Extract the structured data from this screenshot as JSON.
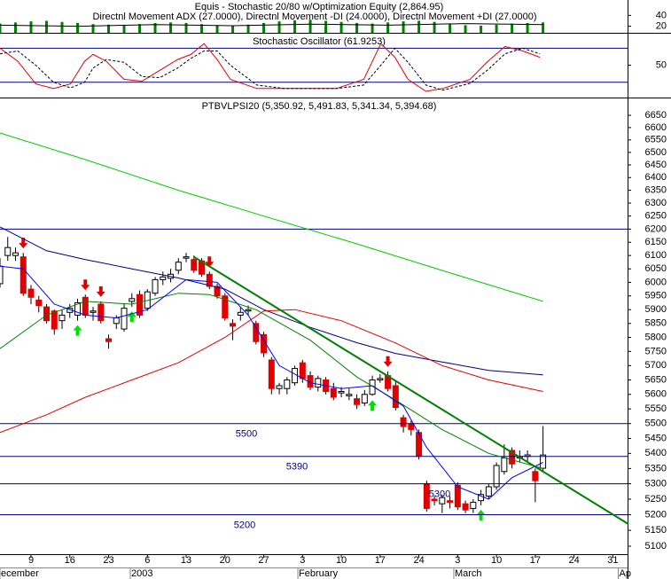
{
  "chart_data": [
    {
      "type": "bar",
      "title": "Equis - Stochastic 20/80  w/Optimization Equity (2,864.95)",
      "subtitle": "Directnl Movement ADX (27.0000), Directnl Movement -DI (24.0000), Directnl Movement +DI (27.0000)",
      "ylim": [
        8,
        65
      ],
      "yticks": [
        40,
        20
      ],
      "color": "#008000",
      "x": [
        0,
        2,
        4,
        6,
        8,
        10,
        12,
        14,
        16,
        18,
        20,
        22,
        24,
        26,
        28,
        30,
        32,
        34,
        36,
        38,
        40,
        42,
        44,
        46,
        48,
        50,
        52,
        54,
        56,
        58,
        60,
        62,
        64,
        66,
        68,
        70
      ],
      "values": [
        25,
        27,
        29,
        30,
        28,
        26,
        24,
        23,
        22,
        24,
        26,
        27,
        26,
        24,
        22,
        21,
        23,
        26,
        29,
        31,
        32,
        30,
        28,
        26,
        25,
        27,
        29,
        30,
        28,
        25,
        22,
        21,
        23,
        25,
        26,
        27
      ],
      "lines": [
        {
          "color": "#000000",
          "x": [
            0,
            10,
            20,
            30,
            40,
            50,
            60,
            70
          ],
          "values": [
            22,
            20,
            23,
            21,
            24,
            22,
            25,
            23
          ]
        }
      ]
    },
    {
      "type": "line",
      "title": "Stochastic Oscillator (61.9253)",
      "ylim": [
        -7,
        104
      ],
      "yticks": [
        50
      ],
      "levels": [
        80,
        20
      ],
      "level_color": "#000080",
      "lines": [
        {
          "color": "#e00000",
          "x": [
            0,
            2.3,
            4.6,
            6.9,
            9.1,
            10.9,
            12,
            13.7,
            16,
            18.3,
            20.6,
            22.9,
            24.6,
            26.3,
            28,
            29.7,
            33.1,
            36.6,
            40,
            43.4,
            46.9,
            49.1,
            50.9,
            52.6,
            54.9,
            57.1,
            60.6,
            62.9,
            65.1,
            67.4,
            69.6
          ],
          "values": [
            80,
            57,
            17,
            9,
            17,
            57,
            69,
            57,
            25,
            22,
            41,
            60,
            69,
            88,
            60,
            25,
            9,
            9,
            9,
            9,
            25,
            88,
            64,
            25,
            4,
            9,
            25,
            57,
            83,
            75,
            64
          ]
        },
        {
          "color": "#000000",
          "dash": true,
          "x": [
            0,
            2.3,
            4.6,
            6.9,
            9.1,
            10.9,
            12,
            13.7,
            16,
            18.3,
            20.6,
            22.9,
            24.6,
            26.3,
            28,
            29.7,
            33.1,
            36.6,
            40,
            43.4,
            46.9,
            49.1,
            50.9,
            52.6,
            54.9,
            57.1,
            60.6,
            62.9,
            65.1,
            67.4,
            69.6
          ],
          "values": [
            70,
            75,
            50,
            20,
            10,
            20,
            45,
            60,
            55,
            30,
            28,
            45,
            62,
            75,
            75,
            50,
            15,
            9,
            9,
            9,
            15,
            50,
            80,
            55,
            15,
            6,
            18,
            42,
            70,
            80,
            70
          ]
        }
      ]
    },
    {
      "type": "candlestick",
      "title": "PTBVLPSI20 (5,350.92, 5,491.83, 5,341.34, 5,394.68)",
      "log_scale": true,
      "ylim": [
        5075,
        6716
      ],
      "yticks": [
        6650,
        6600,
        6550,
        6500,
        6450,
        6400,
        6350,
        6300,
        6250,
        6200,
        6150,
        6100,
        6050,
        6000,
        5950,
        5900,
        5850,
        5800,
        5750,
        5700,
        5650,
        5600,
        5550,
        5500,
        5450,
        5400,
        5350,
        5300,
        5250,
        5200,
        5150,
        5100
      ],
      "xlim": [
        0,
        80.9
      ],
      "xticks": [
        {
          "value": 4,
          "label": "9"
        },
        {
          "value": 9,
          "label": "16"
        },
        {
          "value": 14,
          "label": "23"
        },
        {
          "value": 19,
          "label": "6"
        },
        {
          "value": 24,
          "label": "13"
        },
        {
          "value": 29,
          "label": "20"
        },
        {
          "value": 34,
          "label": "27"
        },
        {
          "value": 39,
          "label": "3"
        },
        {
          "value": 44,
          "label": "10"
        },
        {
          "value": 49,
          "label": "17"
        },
        {
          "value": 54,
          "label": "24"
        },
        {
          "value": 59,
          "label": "3"
        },
        {
          "value": 64,
          "label": "10"
        },
        {
          "value": 69,
          "label": "17"
        },
        {
          "value": 74,
          "label": "24"
        },
        {
          "value": 79,
          "label": "31"
        }
      ],
      "month_labels": [
        {
          "value": 0,
          "label": "ecember"
        },
        {
          "value": 16.8,
          "label": "2003"
        },
        {
          "value": 38.4,
          "label": "February"
        },
        {
          "value": 58.5,
          "label": "March"
        },
        {
          "value": 79.7,
          "label": "Ap"
        }
      ],
      "open": [
        5995,
        6100,
        6100,
        6095,
        5975,
        5935,
        5910,
        5895,
        5860,
        5890,
        5880,
        5945,
        5890,
        5920,
        5795,
        5850,
        5830,
        5930,
        5955,
        5905,
        5960,
        6010,
        6015,
        6045,
        6090,
        6085,
        6080,
        6030,
        5985,
        5950,
        5850,
        5880,
        5895,
        5850,
        5810,
        5720,
        5620,
        5620,
        5640,
        5710,
        5665,
        5625,
        5650,
        5620,
        5605,
        5595,
        5585,
        5570,
        5600,
        5650,
        5665,
        5630,
        5520,
        5500,
        5470,
        5300,
        5250,
        5235,
        5245,
        5295,
        5235,
        5220,
        5245,
        5260,
        5290,
        5340,
        5410,
        5385,
        5390,
        5340,
        5350.92
      ],
      "high": [
        6090,
        6170,
        6130,
        6110,
        5990,
        5950,
        5920,
        5900,
        5900,
        5920,
        5940,
        5955,
        5910,
        5930,
        5810,
        5880,
        5920,
        5960,
        5970,
        5975,
        6020,
        6040,
        6050,
        6090,
        6110,
        6100,
        6090,
        6040,
        5995,
        5960,
        5865,
        5910,
        5915,
        5860,
        5820,
        5730,
        5640,
        5660,
        5700,
        5720,
        5680,
        5665,
        5660,
        5640,
        5625,
        5620,
        5600,
        5615,
        5665,
        5670,
        5680,
        5645,
        5530,
        5510,
        5480,
        5310,
        5260,
        5265,
        5260,
        5305,
        5245,
        5250,
        5280,
        5300,
        5370,
        5430,
        5420,
        5410,
        5410,
        5350,
        5491.83
      ],
      "low": [
        5980,
        6080,
        6080,
        5950,
        5920,
        5890,
        5850,
        5810,
        5830,
        5870,
        5860,
        5870,
        5860,
        5850,
        5760,
        5830,
        5820,
        5910,
        5870,
        5895,
        5950,
        5990,
        6000,
        6030,
        6075,
        6035,
        6020,
        5975,
        5940,
        5860,
        5790,
        5860,
        5880,
        5775,
        5730,
        5600,
        5600,
        5600,
        5630,
        5640,
        5615,
        5610,
        5600,
        5580,
        5590,
        5580,
        5550,
        5560,
        5595,
        5640,
        5610,
        5545,
        5470,
        5460,
        5380,
        5210,
        5230,
        5205,
        5220,
        5215,
        5205,
        5205,
        5230,
        5250,
        5280,
        5330,
        5350,
        5370,
        5370,
        5240,
        5341.34
      ],
      "close": [
        6060,
        6130,
        6110,
        5960,
        5945,
        5915,
        5860,
        5830,
        5880,
        5905,
        5925,
        5880,
        5895,
        5860,
        5785,
        5870,
        5905,
        5940,
        5880,
        5965,
        6010,
        6020,
        6030,
        6075,
        6095,
        6045,
        6030,
        5985,
        5950,
        5870,
        5840,
        5890,
        5900,
        5785,
        5745,
        5620,
        5630,
        5650,
        5690,
        5655,
        5625,
        5655,
        5610,
        5590,
        5610,
        5600,
        5565,
        5600,
        5650,
        5655,
        5620,
        5555,
        5490,
        5480,
        5390,
        5220,
        5245,
        5255,
        5240,
        5225,
        5215,
        5240,
        5265,
        5290,
        5360,
        5385,
        5365,
        5390,
        5395,
        5310,
        5394.68
      ],
      "up_color": "#ffffff",
      "down_color": "#e00000",
      "lines": [
        {
          "color": "#00cc00",
          "x": [
            0,
            11,
            23,
            34,
            46,
            57,
            70
          ],
          "values": [
            6578,
            6471,
            6350,
            6250,
            6144,
            6044,
            5930
          ]
        },
        {
          "color": "#000080",
          "x": [
            0,
            6,
            11,
            17,
            23,
            29,
            34,
            40,
            46,
            51,
            57,
            63,
            70
          ],
          "values": [
            6208,
            6118,
            6085,
            6050,
            6016,
            5975,
            5900,
            5836,
            5781,
            5743,
            5713,
            5683,
            5668
          ]
        },
        {
          "color": "#e00000",
          "x": [
            0,
            6,
            11,
            17,
            23,
            29,
            34,
            38,
            44,
            51,
            57,
            63,
            70
          ],
          "values": [
            5470,
            5530,
            5590,
            5650,
            5710,
            5800,
            5895,
            5900,
            5860,
            5780,
            5700,
            5650,
            5610
          ]
        },
        {
          "color": "#008000",
          "x": [
            0,
            6,
            11,
            17,
            23,
            27,
            33,
            40,
            46,
            51,
            57,
            63,
            70
          ],
          "values": [
            5760,
            5880,
            5930,
            5920,
            5960,
            5955,
            5900,
            5790,
            5660,
            5580,
            5480,
            5400,
            5350
          ]
        },
        {
          "color": "#0000ff",
          "x": [
            0,
            3,
            7,
            11,
            15,
            19,
            24,
            28,
            32,
            36,
            40,
            44,
            48,
            52,
            55,
            59,
            63,
            66,
            70
          ],
          "values": [
            6060,
            6050,
            5920,
            5880,
            5870,
            5900,
            6010,
            6000,
            5880,
            5700,
            5640,
            5620,
            5630,
            5560,
            5420,
            5290,
            5250,
            5320,
            5370
          ]
        },
        {
          "color": "#008000",
          "width": 2,
          "x": [
            25,
            81
          ],
          "values": [
            6095,
            5170
          ]
        }
      ],
      "levels": [
        {
          "value": 6200
        },
        {
          "value": 5500,
          "label": "5500"
        },
        {
          "value": 5390,
          "label": "5390"
        },
        {
          "value": 5300,
          "label": "5300"
        },
        {
          "value": 5200,
          "label": "5200"
        }
      ],
      "level_color": "#000080",
      "buy_signals": [
        10,
        17,
        48,
        62
      ],
      "buy_color": "#00e000",
      "sell_signals": [
        3,
        11,
        13,
        27,
        50
      ],
      "sell_color": "#e00000"
    }
  ]
}
